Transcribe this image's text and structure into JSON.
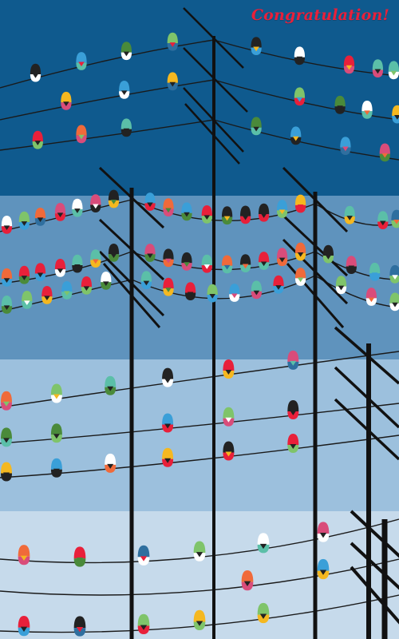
{
  "greeting": "Congratulation!",
  "palette": {
    "sky_bands": [
      "#0f5a8e",
      "#5f93bd",
      "#9cc0dd",
      "#c6daeb"
    ],
    "pole": "#111111",
    "wire": "#1a1a1a",
    "bird_colors": [
      "#e8203a",
      "#f5b820",
      "#3a9fd8",
      "#7fc46a",
      "#5bbfa8",
      "#222222",
      "#ffffff",
      "#f06a3a",
      "#2f6f9f",
      "#4a8a3a",
      "#d94c7a"
    ]
  }
}
